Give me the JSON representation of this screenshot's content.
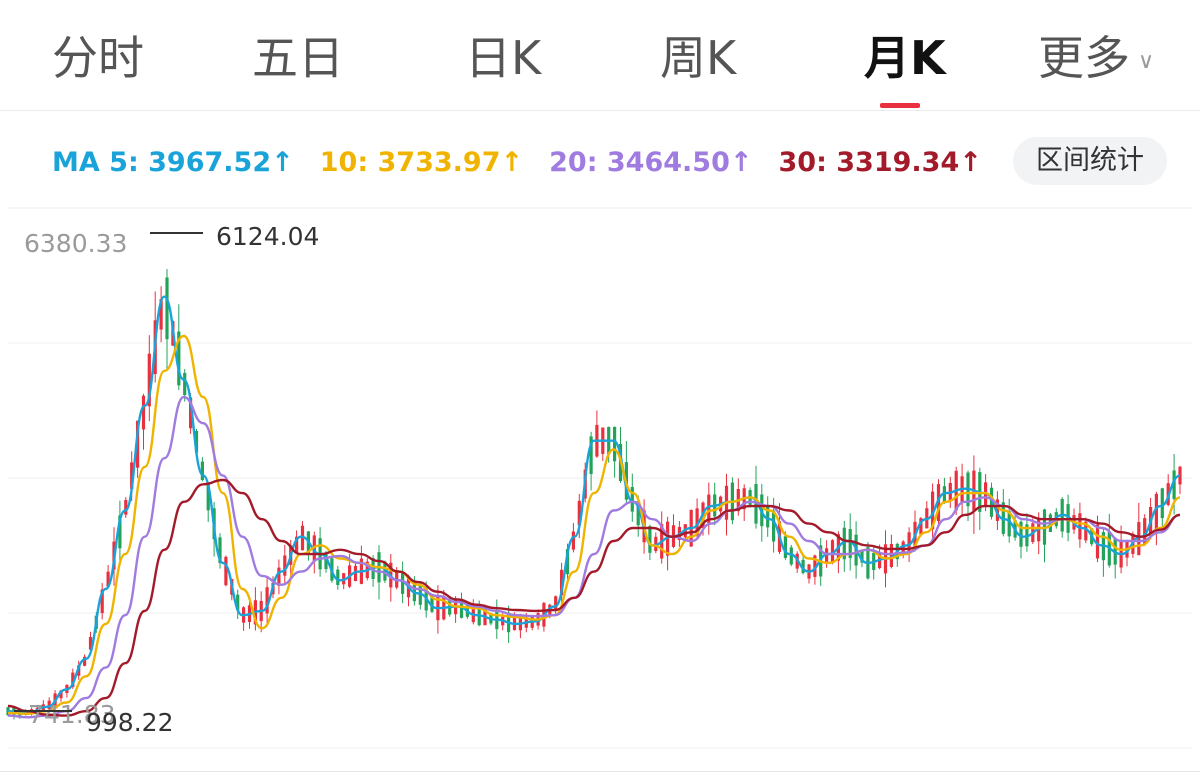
{
  "tabs": [
    {
      "label": "分时",
      "active": false
    },
    {
      "label": "五日",
      "active": false
    },
    {
      "label": "日K",
      "active": false
    },
    {
      "label": "周K",
      "active": false
    },
    {
      "label": "月K",
      "active": true
    },
    {
      "label": "更多",
      "active": false
    }
  ],
  "ma_legend": [
    {
      "label": "MA 5: 3967.52↑",
      "color": "#1aa3d9"
    },
    {
      "label": "10: 3733.97↑",
      "color": "#f0b400"
    },
    {
      "label": "20: 3464.50↑",
      "color": "#a07be0"
    },
    {
      "label": "30: 3319.34↑",
      "color": "#a31b2a"
    }
  ],
  "stats_button": "区间统计",
  "colors": {
    "up": "#e8303f",
    "down": "#23a35a",
    "active_underline": "#e8303f"
  },
  "chart_data": {
    "type": "candlestick",
    "y_max_label": "6380.33",
    "high_annotation": "6124.04",
    "low_annotation_left": "741.83",
    "low_annotation_right": "998.22",
    "ylim": [
      741.83,
      6380.33
    ],
    "grid": true,
    "series": [
      {
        "name": "MA 5",
        "color": "#1aa3d9",
        "values": [
          900,
          880,
          950,
          1150,
          1500,
          2300,
          3200,
          4400,
          5650,
          4700,
          3600,
          2600,
          2000,
          2050,
          2500,
          2900,
          2700,
          2400,
          2500,
          2550,
          2400,
          2250,
          2080,
          2100,
          2000,
          1950,
          1900,
          1930,
          2100,
          2900,
          4000,
          4000,
          3300,
          2800,
          2900,
          3000,
          3250,
          3300,
          3350,
          3100,
          2700,
          2500,
          2700,
          2850,
          2600,
          2650,
          2800,
          3100,
          3400,
          3450,
          3400,
          3100,
          2900,
          3000,
          3150,
          3000,
          2800,
          2700,
          2900,
          3250,
          3600
        ]
      },
      {
        "name": "10",
        "color": "#f0b400",
        "values": [
          880,
          870,
          900,
          1000,
          1300,
          1900,
          2700,
          3700,
          4800,
          5200,
          4500,
          3400,
          2300,
          1850,
          2200,
          2700,
          2800,
          2650,
          2600,
          2550,
          2500,
          2350,
          2180,
          2100,
          2080,
          2000,
          1980,
          1950,
          2000,
          2500,
          3400,
          3900,
          3400,
          2800,
          2700,
          2900,
          3200,
          3300,
          3350,
          3200,
          2900,
          2650,
          2600,
          2700,
          2750,
          2650,
          2700,
          2950,
          3300,
          3400,
          3400,
          3200,
          3000,
          3000,
          3100,
          3050,
          2900,
          2750,
          2800,
          3000,
          3350
        ]
      },
      {
        "name": "20",
        "color": "#a07be0",
        "values": [
          850,
          830,
          850,
          900,
          1050,
          1400,
          2000,
          2900,
          3800,
          4500,
          4200,
          3600,
          2900,
          2450,
          2350,
          2500,
          2650,
          2680,
          2600,
          2500,
          2400,
          2300,
          2220,
          2150,
          2100,
          2050,
          2000,
          1990,
          2000,
          2200,
          2700,
          3200,
          3300,
          3100,
          2900,
          2850,
          3050,
          3200,
          3300,
          3250,
          3050,
          2850,
          2700,
          2700,
          2750,
          2700,
          2720,
          2800,
          3100,
          3300,
          3350,
          3250,
          3100,
          3050,
          3100,
          3100,
          3000,
          2850,
          2850,
          2950,
          3150
        ]
      },
      {
        "name": "30",
        "color": "#a31b2a",
        "values": [
          960,
          900,
          860,
          850,
          900,
          1050,
          1450,
          2050,
          2750,
          3300,
          3500,
          3550,
          3400,
          3100,
          2850,
          2700,
          2700,
          2750,
          2700,
          2620,
          2500,
          2380,
          2270,
          2180,
          2120,
          2080,
          2060,
          2050,
          2060,
          2200,
          2500,
          2850,
          3000,
          3000,
          2900,
          2950,
          3100,
          3200,
          3250,
          3250,
          3200,
          3050,
          2950,
          2850,
          2800,
          2760,
          2760,
          2800,
          2950,
          3150,
          3250,
          3250,
          3150,
          3100,
          3100,
          3100,
          3050,
          2950,
          2900,
          2980,
          3150
        ]
      }
    ]
  }
}
